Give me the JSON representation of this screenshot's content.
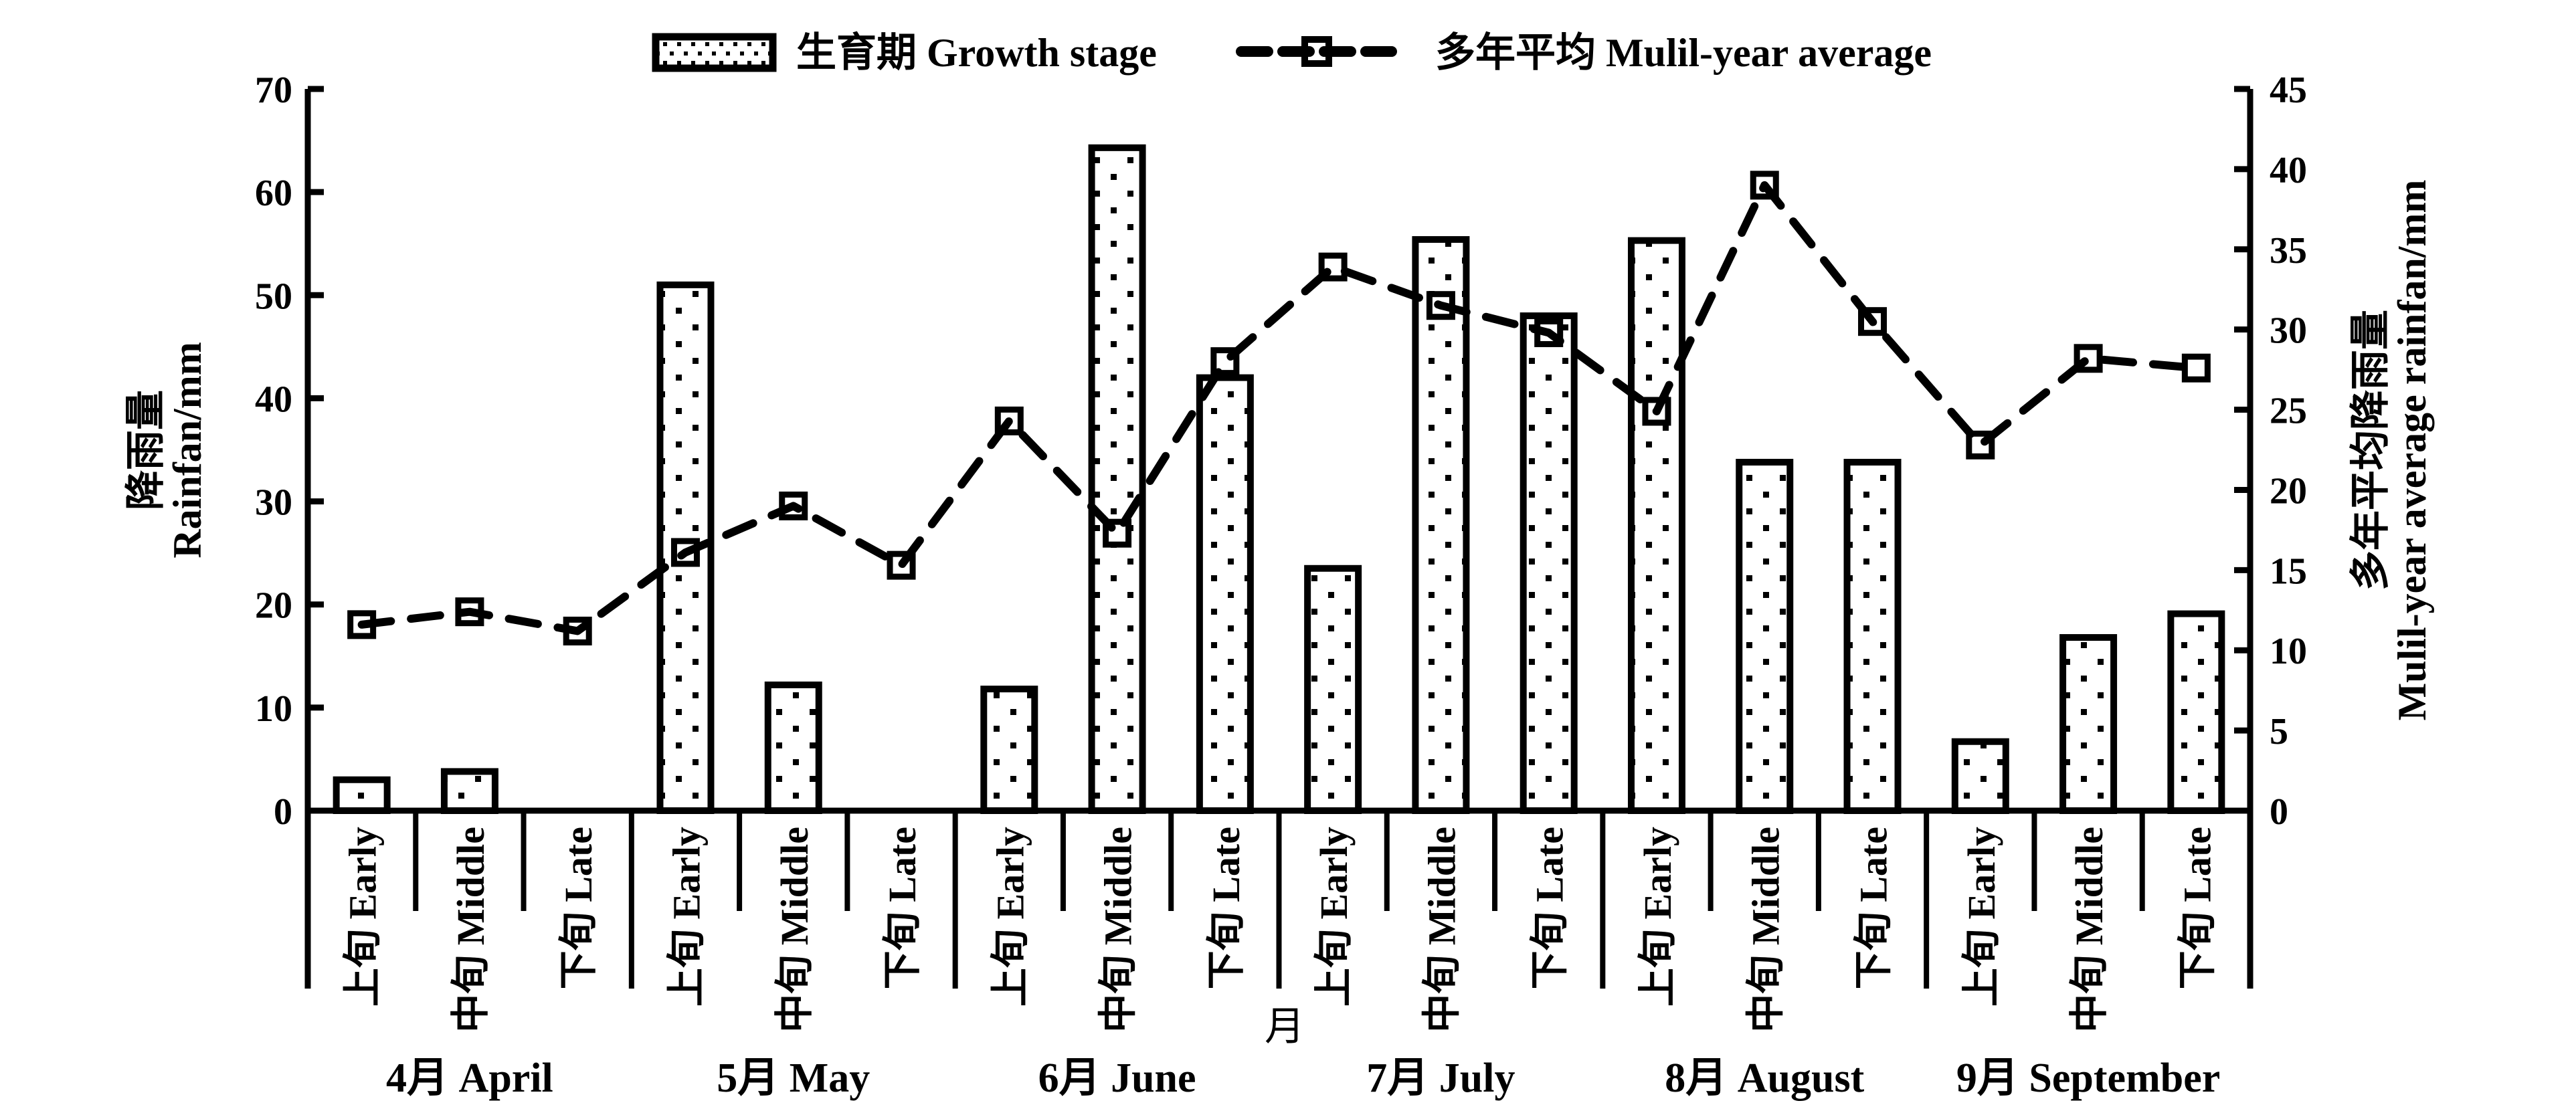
{
  "figure": {
    "background": "#ffffff",
    "ink": "#000000"
  },
  "legend": {
    "items": [
      {
        "swatch": "dotted-bar",
        "label": "生育期 Growth stage"
      },
      {
        "swatch": "dashed-line-square-marker",
        "label": "多年平均 Mulil-year average"
      }
    ]
  },
  "left_axis": {
    "title_zh": "降雨量",
    "title_en": "Rainfan/mm",
    "min": 0,
    "max": 70,
    "step": 10,
    "ticks": [
      "0",
      "10",
      "20",
      "30",
      "40",
      "50",
      "60",
      "70"
    ]
  },
  "right_axis": {
    "title_zh": "多年平均降雨量",
    "title_en": "Mulil-year average rainfan/mm",
    "min": 0,
    "max": 45,
    "step": 5,
    "ticks": [
      "0",
      "5",
      "10",
      "15",
      "20",
      "25",
      "30",
      "35",
      "40",
      "45"
    ]
  },
  "x_axis": {
    "title": "月",
    "period_labels": [
      "上旬 Early",
      "中旬 Middle",
      "下旬 Late"
    ],
    "month_labels": [
      "4月 April",
      "5月 May",
      "6月 June",
      "7月 July",
      "8月 August",
      "9月 September"
    ]
  },
  "chart_data": {
    "type": "bar+line",
    "categories": [
      "4月 April 上旬 Early",
      "4月 April 中旬 Middle",
      "4月 April 下旬 Late",
      "5月 May 上旬 Early",
      "5月 May 中旬 Middle",
      "5月 May 下旬 Late",
      "6月 June 上旬 Early",
      "6月 June 中旬 Middle",
      "6月 June 下旬 Late",
      "7月 July 上旬 Early",
      "7月 July 中旬 Middle",
      "7月 July 下旬 Late",
      "8月 August 上旬 Early",
      "8月 August 中旬 Middle",
      "8月 August 下旬 Late",
      "9月 September 上旬 Early",
      "9月 September 中旬 Middle",
      "9月 September 下旬 Late"
    ],
    "series": [
      {
        "name": "生育期 Growth stage",
        "type": "bar",
        "axis": "left",
        "values": [
          3.0,
          3.8,
          0,
          51.0,
          12.2,
          0,
          11.8,
          64.3,
          42.0,
          23.5,
          55.4,
          48.0,
          55.3,
          33.8,
          33.8,
          6.7,
          16.8,
          19.1
        ]
      },
      {
        "name": "多年平均 Mulil-year average",
        "type": "line",
        "axis": "right",
        "values": [
          11.6,
          12.4,
          11.2,
          16.1,
          19.0,
          15.3,
          24.3,
          17.3,
          28.0,
          33.9,
          31.5,
          29.8,
          24.9,
          39.0,
          30.5,
          22.8,
          28.2,
          27.6
        ]
      }
    ],
    "xlabel": "月",
    "ylabel_left": "降雨量 Rainfan/mm",
    "ylabel_right": "多年平均降雨量 Mulil-year average rainfan/mm",
    "ylim_left": [
      0,
      70
    ],
    "ylim_right": [
      0,
      45
    ],
    "grid": false,
    "legend_position": "top-center"
  }
}
